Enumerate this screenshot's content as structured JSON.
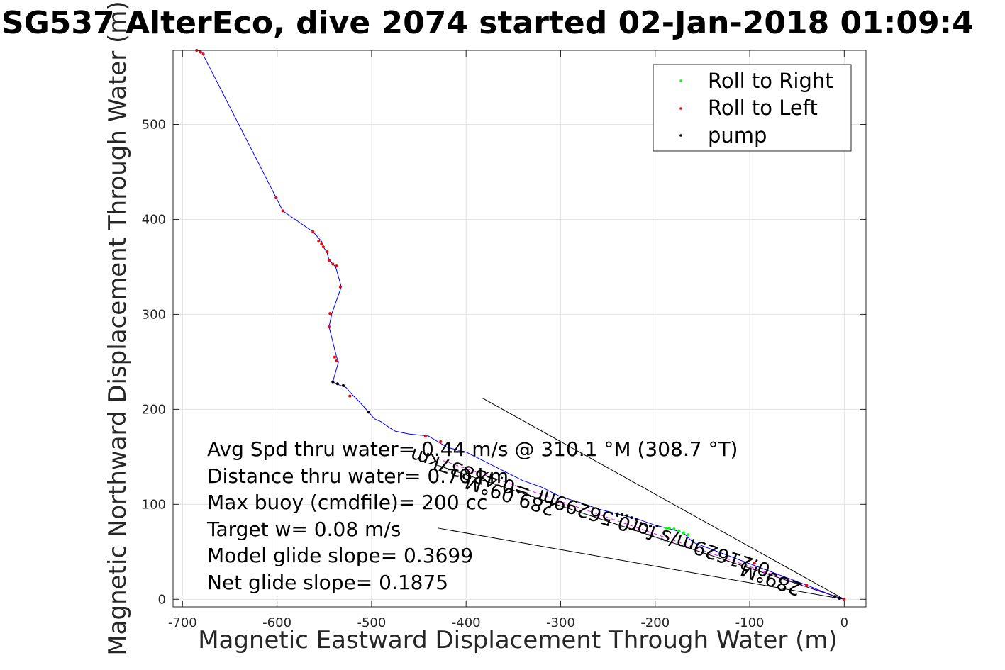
{
  "chart_data": {
    "type": "scatter",
    "title": "SG537 AlterEco, dive 2074 started 02-Jan-2018 01:09:4",
    "xlabel": "Magnetic Eastward Displacement Through Water (m)",
    "ylabel": "Magnetic Northward Displacement Through Water (m)",
    "xlim": [
      -710,
      23
    ],
    "ylim": [
      -8,
      578
    ],
    "xticks": [
      -700,
      -600,
      -500,
      -400,
      -300,
      -200,
      -100,
      0
    ],
    "yticks": [
      0,
      100,
      200,
      300,
      400,
      500
    ],
    "grid": true,
    "legend_position": "top-right",
    "legend": [
      {
        "label": "Roll to Right",
        "color": "#00ff00"
      },
      {
        "label": "Roll to Left",
        "color": "#ff0000"
      },
      {
        "label": "pump",
        "color": "#000000"
      }
    ],
    "series": [
      {
        "name": "track",
        "color": "#0000ff",
        "points": [
          [
            0,
            0
          ],
          [
            -10,
            3
          ],
          [
            -40,
            15
          ],
          [
            -80,
            30
          ],
          [
            -120,
            45
          ],
          [
            -160,
            60
          ],
          [
            -170,
            70
          ],
          [
            -180,
            73
          ],
          [
            -200,
            78
          ],
          [
            -220,
            85
          ],
          [
            -240,
            90
          ],
          [
            -260,
            95
          ],
          [
            -280,
            102
          ],
          [
            -300,
            108
          ],
          [
            -320,
            118
          ],
          [
            -340,
            125
          ],
          [
            -360,
            135
          ],
          [
            -380,
            145
          ],
          [
            -400,
            155
          ],
          [
            -420,
            160
          ],
          [
            -440,
            172
          ],
          [
            -460,
            174
          ],
          [
            -475,
            177
          ],
          [
            -480,
            180
          ],
          [
            -490,
            187
          ],
          [
            -497,
            190
          ],
          [
            -503,
            197
          ],
          [
            -512,
            207
          ],
          [
            -520,
            215
          ],
          [
            -527,
            223
          ],
          [
            -535,
            226
          ],
          [
            -541,
            229
          ],
          [
            -535,
            250
          ],
          [
            -537,
            255
          ],
          [
            -545,
            287
          ],
          [
            -542,
            301
          ],
          [
            -532,
            329
          ],
          [
            -538,
            350
          ],
          [
            -541,
            353
          ],
          [
            -545,
            357
          ],
          [
            -547,
            365
          ],
          [
            -551,
            371
          ],
          [
            -553,
            377
          ],
          [
            -562,
            387
          ],
          [
            -594,
            409
          ],
          [
            -601,
            423
          ],
          [
            -678,
            573
          ],
          [
            -680,
            577
          ],
          [
            -685,
            578
          ]
        ]
      },
      {
        "name": "Roll to Right",
        "color": "#00ff00",
        "points": [
          [
            -175,
            72
          ],
          [
            -180,
            74
          ],
          [
            -185,
            75
          ],
          [
            -188,
            75
          ],
          [
            -170,
            70
          ],
          [
            -165,
            68
          ],
          [
            -523,
            214
          ]
        ]
      },
      {
        "name": "Roll to Left",
        "color": "#ff0000",
        "points": [
          [
            0,
            0
          ],
          [
            -5,
            1
          ],
          [
            -10,
            3
          ],
          [
            -40,
            15
          ],
          [
            -95,
            38
          ],
          [
            -427,
            166
          ],
          [
            -443,
            172
          ],
          [
            -523,
            214
          ],
          [
            -537,
            251
          ],
          [
            -539,
            255
          ],
          [
            -545,
            287
          ],
          [
            -544,
            301
          ],
          [
            -533,
            329
          ],
          [
            -537,
            351
          ],
          [
            -541,
            353
          ],
          [
            -545,
            357
          ],
          [
            -547,
            366
          ],
          [
            -551,
            371
          ],
          [
            -553,
            374
          ],
          [
            -556,
            377
          ],
          [
            -562,
            387
          ],
          [
            -594,
            409
          ],
          [
            -601,
            423
          ],
          [
            -678,
            574
          ],
          [
            -681,
            576
          ],
          [
            -685,
            578
          ]
        ]
      },
      {
        "name": "pump",
        "color": "#000000",
        "points": [
          [
            -198,
            77
          ],
          [
            -205,
            77
          ],
          [
            -210,
            78
          ],
          [
            -215,
            80
          ],
          [
            -220,
            84
          ],
          [
            -225,
            86
          ],
          [
            -230,
            88
          ],
          [
            -235,
            89
          ],
          [
            -240,
            90
          ],
          [
            -503,
            197
          ],
          [
            -530,
            225
          ],
          [
            -536,
            227
          ],
          [
            -541,
            229
          ],
          [
            -10,
            3
          ],
          [
            -5,
            1
          ]
        ]
      }
    ],
    "guide_lines": [
      {
        "color": "#000000",
        "points": [
          [
            0,
            0
          ],
          [
            -383,
            212
          ]
        ]
      },
      {
        "color": "#000000",
        "points": [
          [
            0,
            0
          ],
          [
            -433,
            142
          ]
        ]
      },
      {
        "color": "#000000",
        "points": [
          [
            0,
            0
          ],
          [
            -430,
            75
          ]
        ]
      },
      {
        "color": "#ff00ff",
        "dashed": true,
        "points": [
          [
            0,
            0
          ],
          [
            -430,
            148
          ]
        ]
      }
    ],
    "annotations": [
      {
        "key": "a1",
        "text": "289°M"
      },
      {
        "key": "a2",
        "text": "0.21629m/s for0.56299hr =0.43837km"
      },
      {
        "key": "a3",
        "text": "289.09°M"
      }
    ],
    "stats": [
      "Avg Spd thru water=  0.44 m/s @ 310.1 °M (308.7 °T)",
      "Distance thru water= 0.70 km",
      "Max buoy (cmdfile)= 200 cc",
      "Target w= 0.08 m/s",
      "Model glide slope= 0.3699",
      "Net glide slope= 0.1875"
    ]
  }
}
